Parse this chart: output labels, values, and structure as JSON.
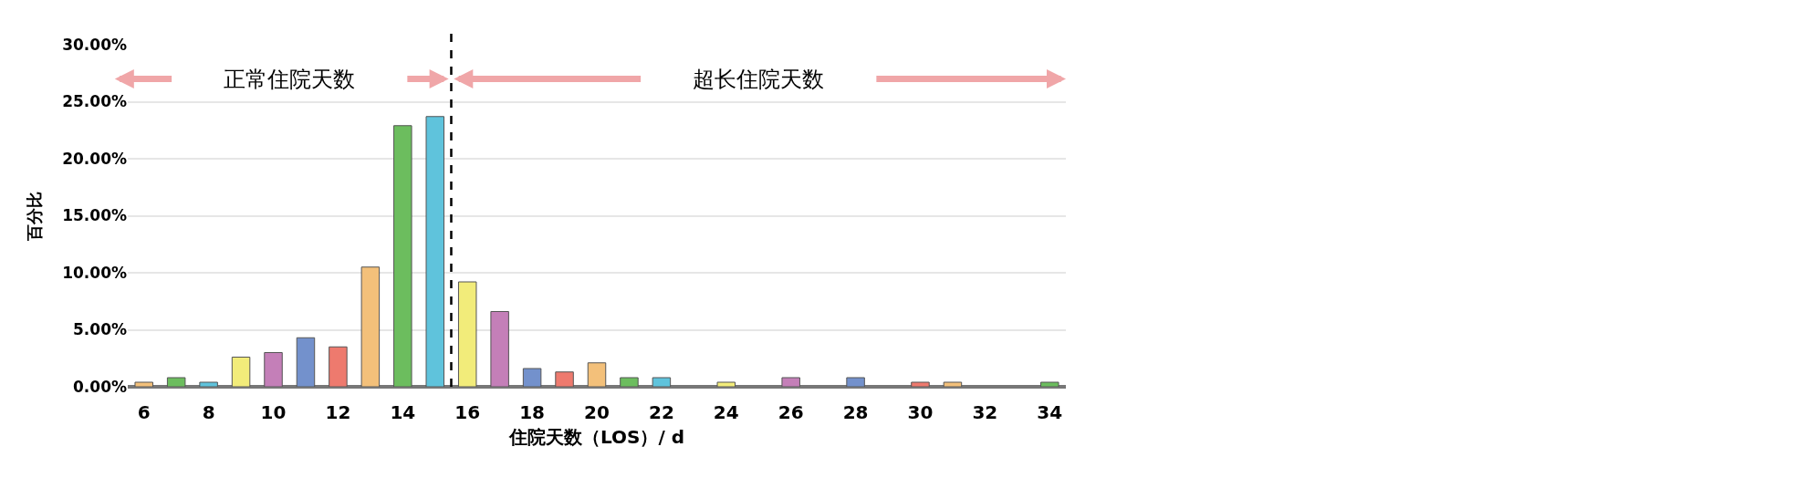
{
  "chart_data": {
    "type": "bar",
    "x": [
      6,
      7,
      8,
      9,
      10,
      11,
      12,
      13,
      14,
      15,
      16,
      17,
      18,
      19,
      20,
      21,
      22,
      23,
      24,
      25,
      26,
      27,
      28,
      29,
      30,
      31,
      32,
      33,
      34
    ],
    "values": [
      0.4,
      0.8,
      0.4,
      2.6,
      3.0,
      4.3,
      3.5,
      10.5,
      22.9,
      23.7,
      9.2,
      6.6,
      1.6,
      1.3,
      2.1,
      0.8,
      0.8,
      null,
      0.4,
      null,
      0.8,
      null,
      0.8,
      null,
      0.4,
      0.4,
      null,
      null,
      0.4
    ],
    "colors": [
      "#f3c07a",
      "#6cbd5e",
      "#5fc3dc",
      "#f2ec7a",
      "#c47fb8",
      "#7391cc",
      "#ee7a6e",
      "#f3c07a",
      "#6cbd5e",
      "#5fc3dc",
      "#f2ec7a",
      "#c47fb8",
      "#7391cc",
      "#ee7a6e",
      "#f3c07a",
      "#6cbd5e",
      "#5fc3dc",
      "#f2ec7a",
      "#f2ec7a",
      "#c47fb8",
      "#c47fb8",
      "#7391cc",
      "#7391cc",
      "#ee7a6e",
      "#ee7a6e",
      "#f3c07a",
      "#6cbd5e",
      "#6cbd5e",
      "#6cbd5e"
    ],
    "xlabel": "住院天数（LOS）/ d",
    "ylabel": "百分比",
    "xlim": [
      5.5,
      34.5
    ],
    "xticks": [
      6,
      8,
      10,
      12,
      14,
      16,
      18,
      20,
      22,
      24,
      26,
      28,
      30,
      32,
      34
    ],
    "ylim": [
      0,
      30
    ],
    "yticks": [
      {
        "value": 0,
        "label": "0.00%"
      },
      {
        "value": 5,
        "label": "5.00%"
      },
      {
        "value": 10,
        "label": "10.00%"
      },
      {
        "value": 15,
        "label": "15.00%"
      },
      {
        "value": 20,
        "label": "20.00%"
      },
      {
        "value": 25,
        "label": "25.00%"
      },
      {
        "value": 30,
        "label": "30.00%"
      }
    ],
    "grid": "y",
    "legend": false,
    "ref_lines": [
      {
        "axis": "x",
        "value": 15.5,
        "color": "#000000",
        "line_style": "dashed"
      }
    ],
    "annotations": [
      "正常住院天数",
      "超长住院天数"
    ]
  }
}
